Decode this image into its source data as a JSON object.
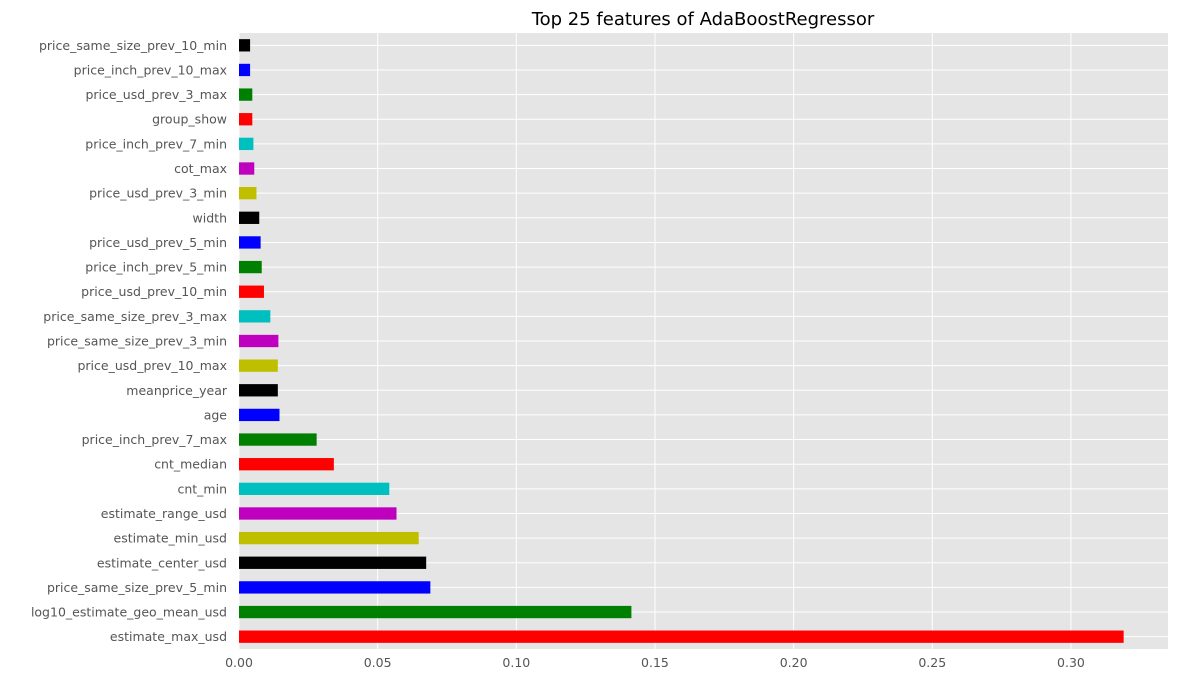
{
  "chart_data": {
    "type": "bar",
    "orientation": "horizontal",
    "title": "Top 25 features of AdaBoostRegressor",
    "xlabel": "",
    "ylabel": "",
    "xlim": [
      0,
      0.335
    ],
    "xticks": [
      0.0,
      0.05,
      0.1,
      0.15,
      0.2,
      0.25,
      0.3
    ],
    "xtick_labels": [
      "0.00",
      "0.05",
      "0.10",
      "0.15",
      "0.20",
      "0.25",
      "0.30"
    ],
    "grid": true,
    "legend": "none",
    "categories": [
      "estimate_max_usd",
      "log10_estimate_geo_mean_usd",
      "price_same_size_prev_5_min",
      "estimate_center_usd",
      "estimate_min_usd",
      "estimate_range_usd",
      "cnt_min",
      "cnt_median",
      "price_inch_prev_7_max",
      "age",
      "meanprice_year",
      "price_usd_prev_10_max",
      "price_same_size_prev_3_min",
      "price_same_size_prev_3_max",
      "price_usd_prev_10_min",
      "price_inch_prev_5_min",
      "price_usd_prev_5_min",
      "width",
      "price_usd_prev_3_min",
      "cot_max",
      "price_inch_prev_7_min",
      "group_show",
      "price_usd_prev_3_max",
      "price_inch_prev_10_max",
      "price_same_size_prev_10_min"
    ],
    "values": [
      0.319,
      0.1415,
      0.069,
      0.0675,
      0.0648,
      0.0568,
      0.0542,
      0.0342,
      0.028,
      0.0146,
      0.014,
      0.014,
      0.0142,
      0.0113,
      0.009,
      0.0082,
      0.0078,
      0.0073,
      0.0063,
      0.0055,
      0.0052,
      0.0048,
      0.0048,
      0.004,
      0.004
    ],
    "colors": [
      "#ff0000",
      "#008000",
      "#0000ff",
      "#000000",
      "#bfbf00",
      "#bf00bf",
      "#00bfbf"
    ],
    "background_color": "#e5e5e5",
    "grid_color": "#ffffff"
  }
}
